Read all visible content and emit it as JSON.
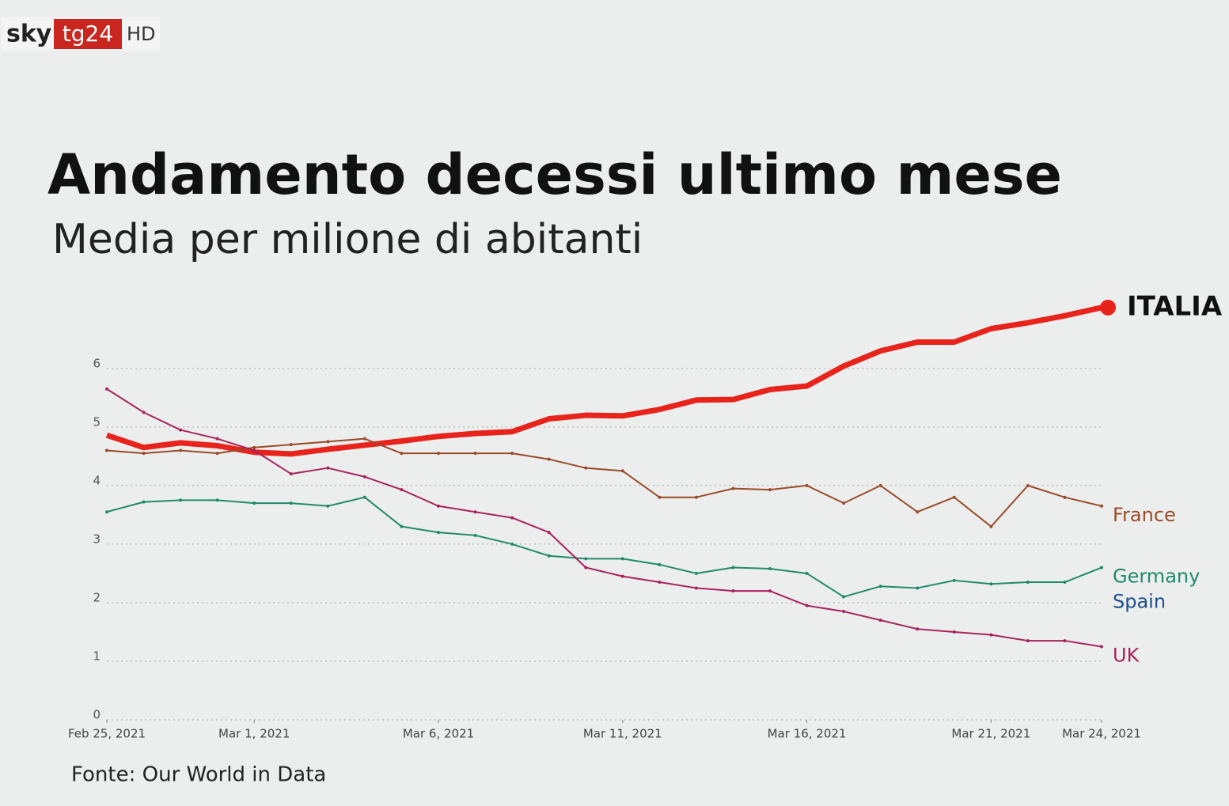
{
  "logo": {
    "brand": "sky",
    "channel": "tg24",
    "quality": "HD"
  },
  "source": "Fonte: Our World in Data",
  "chart_data": {
    "type": "line",
    "title": "Andamento decessi ultimo mese",
    "subtitle": "Media per milione di abitanti",
    "x": [
      "2021-02-25",
      "2021-02-26",
      "2021-02-27",
      "2021-02-28",
      "2021-03-01",
      "2021-03-02",
      "2021-03-03",
      "2021-03-04",
      "2021-03-05",
      "2021-03-06",
      "2021-03-07",
      "2021-03-08",
      "2021-03-09",
      "2021-03-10",
      "2021-03-11",
      "2021-03-12",
      "2021-03-13",
      "2021-03-14",
      "2021-03-15",
      "2021-03-16",
      "2021-03-17",
      "2021-03-18",
      "2021-03-19",
      "2021-03-20",
      "2021-03-21",
      "2021-03-22",
      "2021-03-23",
      "2021-03-24"
    ],
    "xticks": [
      {
        "value": "2021-02-25",
        "label": "Feb 25, 2021"
      },
      {
        "value": "2021-03-01",
        "label": "Mar 1, 2021"
      },
      {
        "value": "2021-03-06",
        "label": "Mar 6, 2021"
      },
      {
        "value": "2021-03-11",
        "label": "Mar 11, 2021"
      },
      {
        "value": "2021-03-16",
        "label": "Mar 16, 2021"
      },
      {
        "value": "2021-03-21",
        "label": "Mar 21, 2021"
      },
      {
        "value": "2021-03-24",
        "label": "Mar 24, 2021"
      }
    ],
    "ylim": [
      0,
      7.2
    ],
    "yticks": [
      0,
      1,
      2,
      3,
      4,
      5,
      6
    ],
    "grid": true,
    "series": [
      {
        "name": "ITALIA",
        "color": "#e8231c",
        "values": [
          4.86,
          4.65,
          4.73,
          4.68,
          4.57,
          4.54,
          4.62,
          4.69,
          4.76,
          4.84,
          4.89,
          4.92,
          5.14,
          5.2,
          5.19,
          5.3,
          5.46,
          5.47,
          5.64,
          5.7,
          6.04,
          6.3,
          6.45,
          6.45,
          6.68,
          6.78,
          6.9,
          7.04
        ]
      },
      {
        "name": "France",
        "color": "#9a4a2a",
        "values": [
          4.6,
          4.55,
          4.6,
          4.55,
          4.65,
          4.7,
          4.75,
          4.8,
          4.55,
          4.55,
          4.55,
          4.55,
          4.45,
          4.3,
          4.25,
          3.8,
          3.8,
          3.95,
          3.93,
          4.0,
          3.7,
          4.0,
          3.55,
          3.8,
          3.3,
          4.0,
          3.8,
          3.65
        ]
      },
      {
        "name": "Germany",
        "color": "#1f8a6a",
        "values": [
          3.55,
          3.72,
          3.75,
          3.75,
          3.7,
          3.7,
          3.65,
          3.8,
          3.3,
          3.2,
          3.15,
          3.0,
          2.8,
          2.75,
          2.75,
          2.65,
          2.5,
          2.6,
          2.58,
          2.5,
          2.1,
          2.28,
          2.25,
          2.38,
          2.32,
          2.35,
          2.35,
          2.6
        ]
      },
      {
        "name": "Spain",
        "color": "#1d4f8c",
        "values": [
          null,
          null,
          null,
          null,
          null,
          null,
          null,
          null,
          null,
          null,
          null,
          null,
          null,
          null,
          null,
          null,
          null,
          null,
          null,
          null,
          null,
          null,
          null,
          null,
          null,
          null,
          null,
          null
        ]
      },
      {
        "name": "UK",
        "color": "#a8235e",
        "values": [
          5.65,
          5.25,
          4.95,
          4.8,
          4.6,
          4.2,
          4.3,
          4.15,
          3.93,
          3.65,
          3.55,
          3.45,
          3.2,
          2.6,
          2.45,
          2.35,
          2.25,
          2.2,
          2.2,
          1.95,
          1.85,
          1.7,
          1.55,
          1.5,
          1.45,
          1.35,
          1.35,
          1.25
        ]
      }
    ]
  }
}
